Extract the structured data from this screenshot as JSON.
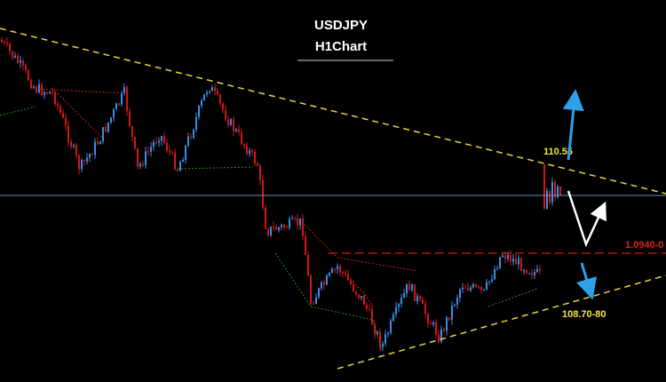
{
  "header": {
    "title": "USDJPY",
    "subtitle": "H1Chart"
  },
  "annotations": {
    "resistance": "110.55",
    "level": "1.0940-0",
    "support": "108.70-80"
  }
}
